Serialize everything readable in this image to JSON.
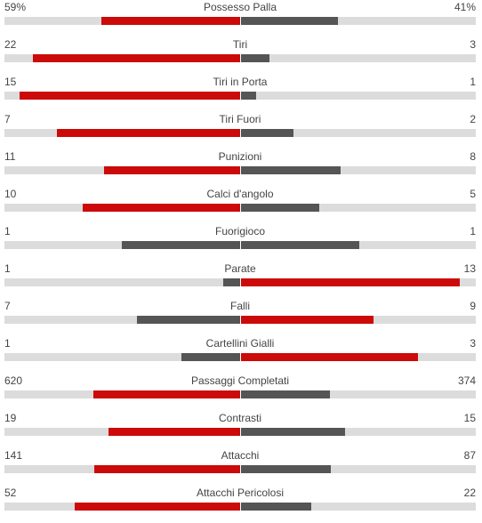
{
  "colors": {
    "leader": "#cc0a0a",
    "trailer": "#555555",
    "track": "#dcdcdc"
  },
  "stats": [
    {
      "name": "Possesso Palla",
      "home": "59%",
      "away": "41%",
      "home_value": 59,
      "away_value": 41
    },
    {
      "name": "Tiri",
      "home": "22",
      "away": "3",
      "home_value": 22,
      "away_value": 3
    },
    {
      "name": "Tiri in Porta",
      "home": "15",
      "away": "1",
      "home_value": 15,
      "away_value": 1
    },
    {
      "name": "Tiri Fuori",
      "home": "7",
      "away": "2",
      "home_value": 7,
      "away_value": 2
    },
    {
      "name": "Punizioni",
      "home": "11",
      "away": "8",
      "home_value": 11,
      "away_value": 8
    },
    {
      "name": "Calci d'angolo",
      "home": "10",
      "away": "5",
      "home_value": 10,
      "away_value": 5
    },
    {
      "name": "Fuorigioco",
      "home": "1",
      "away": "1",
      "home_value": 1,
      "away_value": 1
    },
    {
      "name": "Parate",
      "home": "1",
      "away": "13",
      "home_value": 1,
      "away_value": 13
    },
    {
      "name": "Falli",
      "home": "7",
      "away": "9",
      "home_value": 7,
      "away_value": 9
    },
    {
      "name": "Cartellini Gialli",
      "home": "1",
      "away": "3",
      "home_value": 1,
      "away_value": 3
    },
    {
      "name": "Passaggi Completati",
      "home": "620",
      "away": "374",
      "home_value": 620,
      "away_value": 374
    },
    {
      "name": "Contrasti",
      "home": "19",
      "away": "15",
      "home_value": 19,
      "away_value": 15
    },
    {
      "name": "Attacchi",
      "home": "141",
      "away": "87",
      "home_value": 141,
      "away_value": 87
    },
    {
      "name": "Attacchi Pericolosi",
      "home": "52",
      "away": "22",
      "home_value": 52,
      "away_value": 22
    }
  ]
}
